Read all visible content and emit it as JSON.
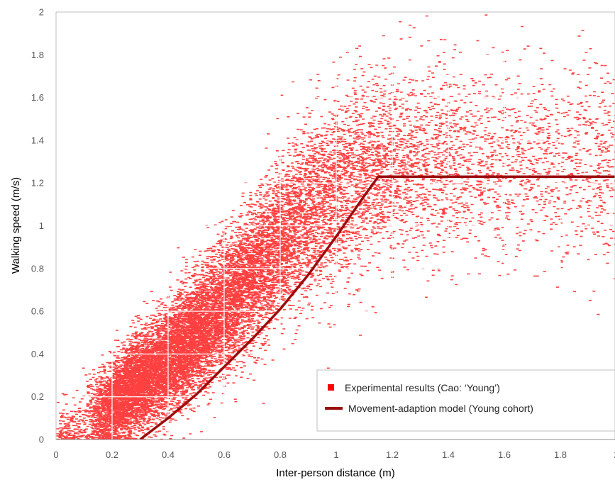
{
  "chart_data": {
    "type": "scatter",
    "title": "",
    "xlabel": "Inter-person distance (m)",
    "ylabel": "Walking speed (m/s)",
    "xlim": [
      0,
      2
    ],
    "ylim": [
      0,
      2
    ],
    "x_ticks": [
      "0",
      "0.2",
      "0.4",
      "0.6",
      "0.8",
      "1",
      "1.2",
      "1.4",
      "1.6",
      "1.8",
      "2"
    ],
    "y_ticks": [
      "0",
      "0.2",
      "0.4",
      "0.6",
      "0.8",
      "1",
      "1.2",
      "1.4",
      "1.6",
      "1.8",
      "2"
    ],
    "grid": true,
    "legend_position": "bottom-right",
    "series": [
      {
        "name": "Experimental results (Cao: ‘Young’)",
        "kind": "scatter",
        "color": "#ff0000",
        "trend": {
          "x": [
            0.0,
            0.1,
            0.2,
            0.3,
            0.4,
            0.5,
            0.6,
            0.7,
            0.8,
            0.9,
            1.0,
            1.1,
            1.2,
            1.3,
            1.4,
            1.5,
            1.6,
            1.7,
            1.8,
            1.9,
            2.0
          ],
          "y": [
            0.02,
            0.08,
            0.17,
            0.27,
            0.38,
            0.5,
            0.63,
            0.77,
            0.92,
            1.06,
            1.17,
            1.24,
            1.28,
            1.3,
            1.31,
            1.31,
            1.3,
            1.3,
            1.29,
            1.29,
            1.29
          ]
        }
      },
      {
        "name": "Movement-adaption model (Young cohort)",
        "kind": "line",
        "color": "#9b0d0d",
        "x": [
          0.3,
          0.4,
          0.5,
          0.6,
          0.7,
          0.8,
          0.9,
          1.0,
          1.1,
          1.15,
          1.3,
          1.5,
          1.7,
          1.9,
          2.0
        ],
        "y": [
          0.0,
          0.1,
          0.21,
          0.34,
          0.47,
          0.61,
          0.77,
          0.95,
          1.14,
          1.23,
          1.23,
          1.23,
          1.23,
          1.23,
          1.23
        ]
      }
    ]
  }
}
